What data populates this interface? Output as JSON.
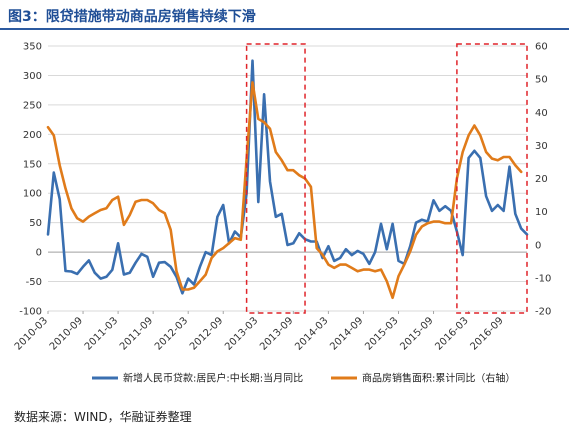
{
  "title": "图3：限贷措施带动商品房销售持续下滑",
  "source": "数据来源：WIND，华融证券整理",
  "colors": {
    "series1": "#3a6fb0",
    "series2": "#e07b1a",
    "highlight": "#e0242a",
    "grid": "#d9d9d9",
    "title": "#1f4e96"
  },
  "chart_data": {
    "type": "line",
    "x_tick_labels": [
      "2010-03",
      "2010-09",
      "2011-03",
      "2011-09",
      "2012-03",
      "2012-09",
      "2013-03",
      "2013-09",
      "2014-03",
      "2014-09",
      "2015-03",
      "2015-09",
      "2016-03",
      "2016-09"
    ],
    "x_start": "2010-03",
    "x_end": "2016-12",
    "y_left": {
      "range": [
        -100,
        350
      ],
      "ticks": [
        -100,
        -50,
        0,
        50,
        100,
        150,
        200,
        250,
        300,
        350
      ]
    },
    "y_right": {
      "range": [
        -20,
        60
      ],
      "ticks": [
        -20,
        -10,
        0,
        10,
        20,
        30,
        40,
        50,
        60
      ]
    },
    "highlight_periods": [
      {
        "from": "2013-01",
        "to": "2013-10"
      },
      {
        "from": "2016-01",
        "to": "2016-12"
      }
    ],
    "series": [
      {
        "name": "新增人民币贷款:居民户:中长期:当月同比",
        "axis": "left",
        "points": [
          [
            "2010-03",
            30
          ],
          [
            "2010-04",
            135
          ],
          [
            "2010-05",
            90
          ],
          [
            "2010-06",
            -32
          ],
          [
            "2010-07",
            -33
          ],
          [
            "2010-08",
            -37
          ],
          [
            "2010-09",
            -25
          ],
          [
            "2010-10",
            -14
          ],
          [
            "2010-11",
            -35
          ],
          [
            "2010-12",
            -45
          ],
          [
            "2011-01",
            -42
          ],
          [
            "2011-02",
            -30
          ],
          [
            "2011-03",
            15
          ],
          [
            "2011-04",
            -38
          ],
          [
            "2011-05",
            -35
          ],
          [
            "2011-06",
            -18
          ],
          [
            "2011-07",
            -3
          ],
          [
            "2011-08",
            -8
          ],
          [
            "2011-09",
            -42
          ],
          [
            "2011-10",
            -18
          ],
          [
            "2011-11",
            -17
          ],
          [
            "2011-12",
            -25
          ],
          [
            "2012-01",
            -42
          ],
          [
            "2012-02",
            -70
          ],
          [
            "2012-03",
            -45
          ],
          [
            "2012-04",
            -55
          ],
          [
            "2012-05",
            -25
          ],
          [
            "2012-06",
            0
          ],
          [
            "2012-07",
            -5
          ],
          [
            "2012-08",
            60
          ],
          [
            "2012-09",
            80
          ],
          [
            "2012-10",
            15
          ],
          [
            "2012-11",
            35
          ],
          [
            "2012-12",
            25
          ],
          [
            "2013-01",
            100
          ],
          [
            "2013-02",
            325
          ],
          [
            "2013-03",
            85
          ],
          [
            "2013-04",
            268
          ],
          [
            "2013-05",
            120
          ],
          [
            "2013-06",
            60
          ],
          [
            "2013-07",
            65
          ],
          [
            "2013-08",
            12
          ],
          [
            "2013-09",
            15
          ],
          [
            "2013-10",
            32
          ],
          [
            "2013-11",
            22
          ],
          [
            "2013-12",
            18
          ],
          [
            "2014-01",
            18
          ],
          [
            "2014-02",
            -10
          ],
          [
            "2014-03",
            10
          ],
          [
            "2014-04",
            -15
          ],
          [
            "2014-05",
            -10
          ],
          [
            "2014-06",
            5
          ],
          [
            "2014-07",
            -5
          ],
          [
            "2014-08",
            2
          ],
          [
            "2014-09",
            -3
          ],
          [
            "2014-10",
            -20
          ],
          [
            "2014-11",
            0
          ],
          [
            "2014-12",
            48
          ],
          [
            "2015-01",
            5
          ],
          [
            "2015-02",
            48
          ],
          [
            "2015-03",
            -15
          ],
          [
            "2015-04",
            -20
          ],
          [
            "2015-05",
            10
          ],
          [
            "2015-06",
            50
          ],
          [
            "2015-07",
            55
          ],
          [
            "2015-08",
            52
          ],
          [
            "2015-09",
            88
          ],
          [
            "2015-10",
            70
          ],
          [
            "2015-11",
            78
          ],
          [
            "2015-12",
            70
          ],
          [
            "2016-01",
            35
          ],
          [
            "2016-02",
            -5
          ],
          [
            "2016-03",
            160
          ],
          [
            "2016-04",
            172
          ],
          [
            "2016-05",
            160
          ],
          [
            "2016-06",
            95
          ],
          [
            "2016-07",
            70
          ],
          [
            "2016-08",
            80
          ],
          [
            "2016-09",
            70
          ],
          [
            "2016-10",
            145
          ],
          [
            "2016-11",
            65
          ],
          [
            "2016-12",
            40
          ],
          [
            "2017-01",
            30
          ]
        ]
      },
      {
        "name": "商品房销售面积:累计同比（右轴）",
        "axis": "right",
        "points": [
          [
            "2010-03",
            35.5
          ],
          [
            "2010-04",
            33
          ],
          [
            "2010-05",
            24
          ],
          [
            "2010-06",
            17
          ],
          [
            "2010-07",
            11
          ],
          [
            "2010-08",
            8
          ],
          [
            "2010-09",
            7
          ],
          [
            "2010-10",
            8.5
          ],
          [
            "2010-11",
            9.5
          ],
          [
            "2010-12",
            10.5
          ],
          [
            "2011-01",
            11
          ],
          [
            "2011-02",
            13.5
          ],
          [
            "2011-03",
            14.5
          ],
          [
            "2011-04",
            6
          ],
          [
            "2011-05",
            9
          ],
          [
            "2011-06",
            13
          ],
          [
            "2011-07",
            13.5
          ],
          [
            "2011-08",
            13.5
          ],
          [
            "2011-09",
            12.5
          ],
          [
            "2011-10",
            10.5
          ],
          [
            "2011-11",
            9.5
          ],
          [
            "2011-12",
            4.5
          ],
          [
            "2012-01",
            -8
          ],
          [
            "2012-02",
            -13.5
          ],
          [
            "2012-03",
            -13.5
          ],
          [
            "2012-04",
            -13
          ],
          [
            "2012-05",
            -11
          ],
          [
            "2012-06",
            -9
          ],
          [
            "2012-07",
            -4
          ],
          [
            "2012-08",
            -2
          ],
          [
            "2012-09",
            -1
          ],
          [
            "2012-10",
            0.5
          ],
          [
            "2012-11",
            2
          ],
          [
            "2012-12",
            1.5
          ],
          [
            "2013-01",
            26
          ],
          [
            "2013-02",
            49
          ],
          [
            "2013-03",
            38
          ],
          [
            "2013-04",
            37
          ],
          [
            "2013-05",
            35
          ],
          [
            "2013-06",
            28
          ],
          [
            "2013-07",
            25.5
          ],
          [
            "2013-08",
            22.5
          ],
          [
            "2013-09",
            22.5
          ],
          [
            "2013-10",
            21
          ],
          [
            "2013-11",
            20
          ],
          [
            "2013-12",
            17.5
          ],
          [
            "2014-01",
            -1
          ],
          [
            "2014-02",
            -3
          ],
          [
            "2014-03",
            -6
          ],
          [
            "2014-04",
            -7
          ],
          [
            "2014-05",
            -6
          ],
          [
            "2014-06",
            -6
          ],
          [
            "2014-07",
            -7
          ],
          [
            "2014-08",
            -8
          ],
          [
            "2014-09",
            -7.5
          ],
          [
            "2014-10",
            -7.5
          ],
          [
            "2014-11",
            -8
          ],
          [
            "2014-12",
            -7.5
          ],
          [
            "2015-01",
            -11
          ],
          [
            "2015-02",
            -16
          ],
          [
            "2015-03",
            -9.5
          ],
          [
            "2015-04",
            -6
          ],
          [
            "2015-05",
            -2
          ],
          [
            "2015-06",
            3
          ],
          [
            "2015-07",
            5.5
          ],
          [
            "2015-08",
            6.5
          ],
          [
            "2015-09",
            7
          ],
          [
            "2015-10",
            7
          ],
          [
            "2015-11",
            6.5
          ],
          [
            "2015-12",
            6.5
          ],
          [
            "2016-01",
            20
          ],
          [
            "2016-02",
            28
          ],
          [
            "2016-03",
            33
          ],
          [
            "2016-04",
            36
          ],
          [
            "2016-05",
            33
          ],
          [
            "2016-06",
            28
          ],
          [
            "2016-07",
            26
          ],
          [
            "2016-08",
            25.5
          ],
          [
            "2016-09",
            26.5
          ],
          [
            "2016-10",
            26.5
          ],
          [
            "2016-11",
            24
          ],
          [
            "2016-12",
            22
          ]
        ]
      }
    ]
  }
}
